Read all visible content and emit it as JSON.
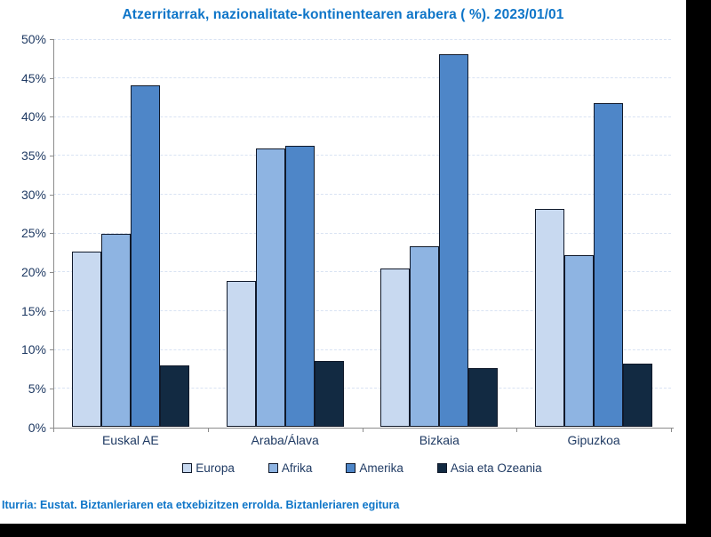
{
  "title": "Atzerritarrak, nazionalitate-kontinentearen arabera ( %). 2023/01/01",
  "source": "Iturria: Eustat. Biztanleriaren eta etxebizitzen errolda. Biztanleriaren egitura",
  "chart_data": {
    "type": "bar",
    "categories": [
      "Euskal AE",
      "Araba/Álava",
      "Bizkaia",
      "Gipuzkoa"
    ],
    "series": [
      {
        "name": "Europa",
        "color": "#c8d9f0",
        "values": [
          22.6,
          18.9,
          20.5,
          28.1
        ]
      },
      {
        "name": "Afrika",
        "color": "#8eb4e2",
        "values": [
          24.9,
          35.9,
          23.3,
          22.2
        ]
      },
      {
        "name": "Amerika",
        "color": "#4e86c8",
        "values": [
          44.0,
          36.3,
          48.1,
          41.7
        ]
      },
      {
        "name": "Asia eta Ozeania",
        "color": "#122a42",
        "values": [
          8.0,
          8.5,
          7.6,
          8.2
        ]
      }
    ],
    "xlabel": "",
    "ylabel": "",
    "ylim": [
      0,
      50
    ],
    "ytick_step": 5,
    "ytick_labels": [
      "0%",
      "5%",
      "10%",
      "15%",
      "20%",
      "25%",
      "30%",
      "35%",
      "40%",
      "45%",
      "50%"
    ],
    "grid": true,
    "legend_position": "bottom",
    "accent_colors": {
      "title_blue": "#0e75c8",
      "axis_text_navy": "#1f3a63",
      "axis_gray": "#8c8c8c",
      "gridline_blue": "#d9e3f3",
      "bar_border": "#10192a",
      "frame_black": "#000000"
    }
  }
}
